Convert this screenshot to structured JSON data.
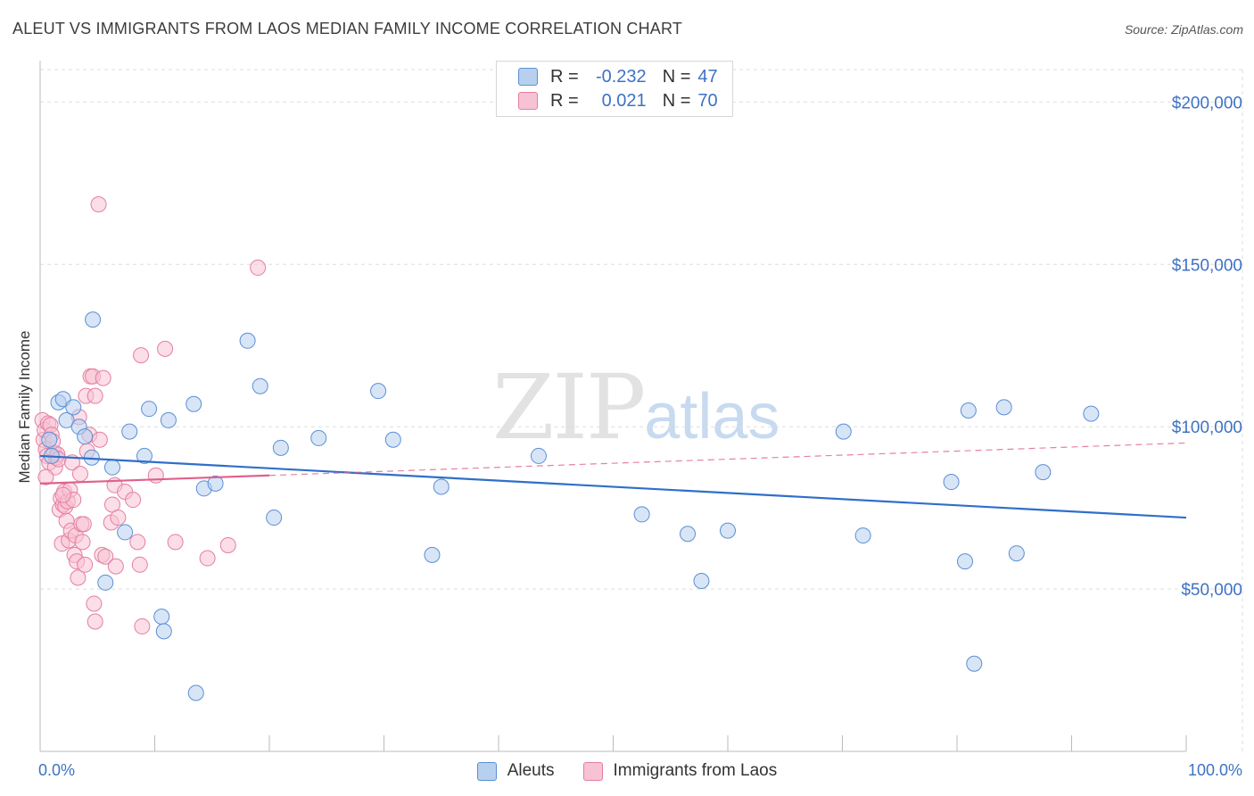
{
  "title": "ALEUT VS IMMIGRANTS FROM LAOS MEDIAN FAMILY INCOME CORRELATION CHART",
  "source": "Source: ZipAtlas.com",
  "watermark": {
    "zip": "ZIP",
    "atlas": "atlas"
  },
  "colors": {
    "blue_fill": "#b7d0f0",
    "blue_stroke": "#5b8fd4",
    "blue_line": "#2f6fc9",
    "pink_fill": "#f7c2d3",
    "pink_stroke": "#e57ea0",
    "pink_line": "#e0608c",
    "grid": "#dedede",
    "axis_text": "#3d72c4"
  },
  "legend_top": [
    {
      "r_label": "R =",
      "r_value": "-0.232",
      "n_label": "N =",
      "n_value": "47"
    },
    {
      "r_label": "R =",
      "r_value": "0.021",
      "n_label": "N =",
      "n_value": "70"
    }
  ],
  "legend_bottom": [
    "Aleuts",
    "Immigrants from Laos"
  ],
  "chart_data": {
    "type": "scatter",
    "title": "ALEUT VS IMMIGRANTS FROM LAOS MEDIAN FAMILY INCOME CORRELATION CHART",
    "xlabel": "",
    "ylabel": "Median Family Income",
    "xlim": [
      0,
      100
    ],
    "ylim": [
      0,
      210000
    ],
    "x_tick_labels": [
      "0.0%",
      "100.0%"
    ],
    "y_ticks": [
      50000,
      100000,
      150000,
      200000
    ],
    "y_tick_labels": [
      "$50,000",
      "$100,000",
      "$150,000",
      "$200,000"
    ],
    "grid": true,
    "series": [
      {
        "name": "Aleuts",
        "r": -0.232,
        "n": 47,
        "trend": {
          "x": [
            0,
            100
          ],
          "y": [
            91000,
            72000
          ],
          "style": "solid"
        },
        "points": [
          {
            "x": 0.8,
            "y": 96000
          },
          {
            "x": 1.6,
            "y": 107500
          },
          {
            "x": 2.0,
            "y": 108500
          },
          {
            "x": 2.3,
            "y": 102000
          },
          {
            "x": 2.9,
            "y": 106000
          },
          {
            "x": 3.4,
            "y": 100000
          },
          {
            "x": 3.9,
            "y": 97000
          },
          {
            "x": 4.5,
            "y": 90500
          },
          {
            "x": 4.6,
            "y": 133000
          },
          {
            "x": 5.7,
            "y": 52000
          },
          {
            "x": 6.3,
            "y": 87500
          },
          {
            "x": 7.4,
            "y": 67500
          },
          {
            "x": 7.8,
            "y": 98500
          },
          {
            "x": 9.1,
            "y": 91000
          },
          {
            "x": 9.5,
            "y": 105500
          },
          {
            "x": 10.6,
            "y": 41500
          },
          {
            "x": 10.8,
            "y": 37000
          },
          {
            "x": 11.2,
            "y": 102000
          },
          {
            "x": 13.4,
            "y": 107000
          },
          {
            "x": 13.6,
            "y": 18000
          },
          {
            "x": 14.3,
            "y": 81000
          },
          {
            "x": 15.3,
            "y": 82500
          },
          {
            "x": 18.1,
            "y": 126500
          },
          {
            "x": 19.2,
            "y": 112500
          },
          {
            "x": 20.4,
            "y": 72000
          },
          {
            "x": 21.0,
            "y": 93500
          },
          {
            "x": 24.3,
            "y": 96500
          },
          {
            "x": 29.5,
            "y": 111000
          },
          {
            "x": 30.8,
            "y": 96000
          },
          {
            "x": 34.2,
            "y": 60500
          },
          {
            "x": 35.0,
            "y": 81500
          },
          {
            "x": 43.5,
            "y": 91000
          },
          {
            "x": 52.5,
            "y": 73000
          },
          {
            "x": 56.5,
            "y": 67000
          },
          {
            "x": 57.7,
            "y": 52500
          },
          {
            "x": 60.0,
            "y": 68000
          },
          {
            "x": 70.1,
            "y": 98500
          },
          {
            "x": 71.8,
            "y": 66500
          },
          {
            "x": 79.5,
            "y": 83000
          },
          {
            "x": 80.7,
            "y": 58500
          },
          {
            "x": 81.0,
            "y": 105000
          },
          {
            "x": 81.5,
            "y": 27000
          },
          {
            "x": 84.1,
            "y": 106000
          },
          {
            "x": 85.2,
            "y": 61000
          },
          {
            "x": 87.5,
            "y": 86000
          },
          {
            "x": 91.7,
            "y": 104000
          },
          {
            "x": 1.0,
            "y": 91000
          }
        ]
      },
      {
        "name": "Immigrants from Laos",
        "r": 0.021,
        "n": 70,
        "trend": {
          "x": [
            0,
            20
          ],
          "y": [
            82500,
            85000
          ],
          "style": "solid",
          "dashed_extension": {
            "x": [
              20,
              100
            ],
            "y": [
              85000,
              95000
            ]
          }
        },
        "points": [
          {
            "x": 0.2,
            "y": 102000
          },
          {
            "x": 0.3,
            "y": 96000
          },
          {
            "x": 0.4,
            "y": 99000
          },
          {
            "x": 0.5,
            "y": 93000
          },
          {
            "x": 0.6,
            "y": 91000
          },
          {
            "x": 0.7,
            "y": 101000
          },
          {
            "x": 0.8,
            "y": 89000
          },
          {
            "x": 0.9,
            "y": 100500
          },
          {
            "x": 1.0,
            "y": 97500
          },
          {
            "x": 1.2,
            "y": 92000
          },
          {
            "x": 1.3,
            "y": 87500
          },
          {
            "x": 1.4,
            "y": 90500
          },
          {
            "x": 1.5,
            "y": 91500
          },
          {
            "x": 1.6,
            "y": 90000
          },
          {
            "x": 1.7,
            "y": 74500
          },
          {
            "x": 1.8,
            "y": 78000
          },
          {
            "x": 1.9,
            "y": 64000
          },
          {
            "x": 2.0,
            "y": 76000
          },
          {
            "x": 2.1,
            "y": 80000
          },
          {
            "x": 2.2,
            "y": 75500
          },
          {
            "x": 2.3,
            "y": 71000
          },
          {
            "x": 2.4,
            "y": 77000
          },
          {
            "x": 2.5,
            "y": 65000
          },
          {
            "x": 2.6,
            "y": 80500
          },
          {
            "x": 2.7,
            "y": 68000
          },
          {
            "x": 2.8,
            "y": 89000
          },
          {
            "x": 2.9,
            "y": 77500
          },
          {
            "x": 3.0,
            "y": 60500
          },
          {
            "x": 3.1,
            "y": 66500
          },
          {
            "x": 3.2,
            "y": 58500
          },
          {
            "x": 3.3,
            "y": 53500
          },
          {
            "x": 3.4,
            "y": 103000
          },
          {
            "x": 3.5,
            "y": 85500
          },
          {
            "x": 3.6,
            "y": 70000
          },
          {
            "x": 3.7,
            "y": 64500
          },
          {
            "x": 3.8,
            "y": 70000
          },
          {
            "x": 3.9,
            "y": 57500
          },
          {
            "x": 4.0,
            "y": 109500
          },
          {
            "x": 4.1,
            "y": 92500
          },
          {
            "x": 4.3,
            "y": 97500
          },
          {
            "x": 4.4,
            "y": 115500
          },
          {
            "x": 4.6,
            "y": 115500
          },
          {
            "x": 4.8,
            "y": 109500
          },
          {
            "x": 4.7,
            "y": 45500
          },
          {
            "x": 4.8,
            "y": 40000
          },
          {
            "x": 5.2,
            "y": 96000
          },
          {
            "x": 5.4,
            "y": 60500
          },
          {
            "x": 5.5,
            "y": 115000
          },
          {
            "x": 5.7,
            "y": 60000
          },
          {
            "x": 5.1,
            "y": 168500
          },
          {
            "x": 6.2,
            "y": 70500
          },
          {
            "x": 6.3,
            "y": 76000
          },
          {
            "x": 6.5,
            "y": 82000
          },
          {
            "x": 6.6,
            "y": 57000
          },
          {
            "x": 6.8,
            "y": 72000
          },
          {
            "x": 7.4,
            "y": 80000
          },
          {
            "x": 8.1,
            "y": 77500
          },
          {
            "x": 8.5,
            "y": 64500
          },
          {
            "x": 8.7,
            "y": 57500
          },
          {
            "x": 8.8,
            "y": 122000
          },
          {
            "x": 8.9,
            "y": 38500
          },
          {
            "x": 10.1,
            "y": 85000
          },
          {
            "x": 10.9,
            "y": 124000
          },
          {
            "x": 11.8,
            "y": 64500
          },
          {
            "x": 14.6,
            "y": 59500
          },
          {
            "x": 16.4,
            "y": 63500
          },
          {
            "x": 19.0,
            "y": 149000
          },
          {
            "x": 2.0,
            "y": 79000
          },
          {
            "x": 1.1,
            "y": 95500
          },
          {
            "x": 0.5,
            "y": 84500
          }
        ]
      }
    ]
  }
}
